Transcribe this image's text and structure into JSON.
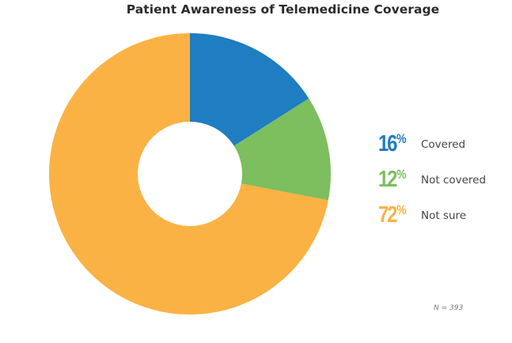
{
  "chart_data": {
    "type": "pie",
    "subtype": "donut",
    "title": "Patient Awareness of Telemedicine Coverage",
    "categories": [
      "Covered",
      "Not covered",
      "Not sure"
    ],
    "values": [
      16,
      12,
      72
    ],
    "unit": "%",
    "colors": [
      "#1f7dc1",
      "#7dbe5e",
      "#fbb244"
    ],
    "legend_position": "right",
    "start_angle_deg": 0,
    "direction": "clockwise",
    "annotation": "N = 393"
  },
  "title": "Patient Awareness of Telemedicine Coverage",
  "legend": [
    {
      "pct": "16",
      "sym": "%",
      "label": "Covered",
      "color": "#1f7dc1"
    },
    {
      "pct": "12",
      "sym": "%",
      "label": "Not covered",
      "color": "#7dbe5e"
    },
    {
      "pct": "72",
      "sym": "%",
      "label": "Not sure",
      "color": "#fbb244"
    }
  ],
  "note": "N = 393"
}
